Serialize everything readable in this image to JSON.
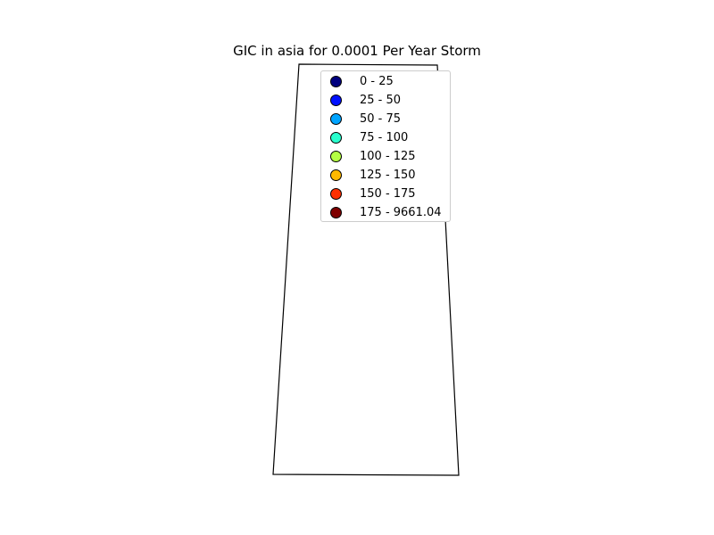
{
  "title": "GIC in asia for 0.0001 Per Year Storm",
  "legend": {
    "entries": [
      {
        "label": "0 - 25",
        "color": "#00007f"
      },
      {
        "label": "25 - 50",
        "color": "#0010ff"
      },
      {
        "label": "50 - 75",
        "color": "#00a4ff"
      },
      {
        "label": "75 - 100",
        "color": "#29ffce"
      },
      {
        "label": "100 - 125",
        "color": "#b4ff43"
      },
      {
        "label": "125 - 150",
        "color": "#ffb900"
      },
      {
        "label": "150 - 175",
        "color": "#ff3000"
      },
      {
        "label": "175 - 9661.04",
        "color": "#7f0000"
      }
    ]
  }
}
